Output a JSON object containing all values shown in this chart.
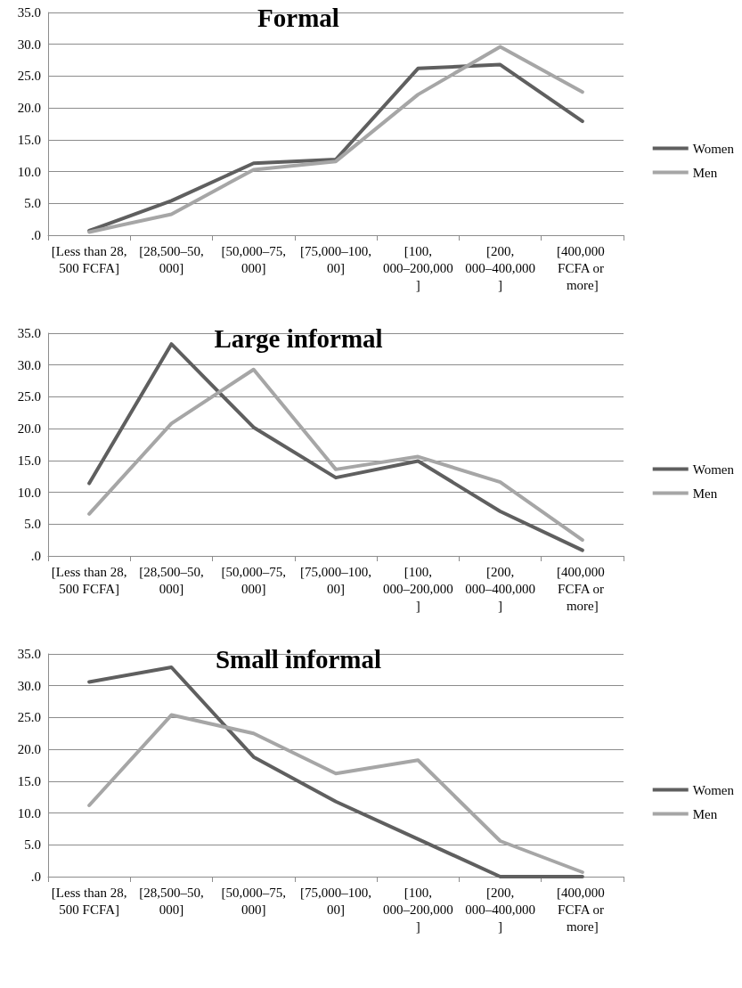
{
  "chart_data": [
    {
      "type": "line",
      "title": "Formal",
      "categories": [
        "[Less than 28,500 FCFA]",
        "[28,500–50,000]",
        "[50,000–75,000]",
        "[75,000–100,00]",
        "[100,000–200,000]",
        "[200,000–400,000]",
        "[400,000 FCFA or more]"
      ],
      "series": [
        {
          "name": "Women",
          "color": "#5f5f5f",
          "values": [
            0.7,
            5.4,
            11.3,
            11.9,
            26.2,
            26.8,
            17.9
          ]
        },
        {
          "name": "Men",
          "color": "#a6a6a6",
          "values": [
            0.5,
            3.3,
            10.3,
            11.6,
            22.1,
            29.6,
            22.5
          ]
        }
      ],
      "ylim": [
        0,
        35
      ],
      "yticks": [
        {
          "value": 0,
          "label": ".0"
        },
        {
          "value": 5,
          "label": "5.0"
        },
        {
          "value": 10,
          "label": "10.0"
        },
        {
          "value": 15,
          "label": "15.0"
        },
        {
          "value": 20,
          "label": "20.0"
        },
        {
          "value": 25,
          "label": "25.0"
        },
        {
          "value": 30,
          "label": "30.0"
        },
        {
          "value": 35,
          "label": "35.0"
        }
      ],
      "grid": "y",
      "legend": "right",
      "marker": "none",
      "line_style": "solid"
    },
    {
      "type": "line",
      "title": "Large informal",
      "categories": [
        "[Less than 28,500 FCFA]",
        "[28,500–50,000]",
        "[50,000–75,000]",
        "[75,000–100,00]",
        "[100,000–200,000]",
        "[200,000–400,000]",
        "[400,000 FCFA or more]"
      ],
      "series": [
        {
          "name": "Women",
          "color": "#5f5f5f",
          "values": [
            11.4,
            33.3,
            20.2,
            12.3,
            14.9,
            7.0,
            0.9
          ]
        },
        {
          "name": "Men",
          "color": "#a6a6a6",
          "values": [
            6.6,
            20.8,
            29.3,
            13.6,
            15.6,
            11.6,
            2.5
          ]
        }
      ],
      "ylim": [
        0,
        35
      ],
      "yticks": [
        {
          "value": 0,
          "label": ".0"
        },
        {
          "value": 5,
          "label": "5.0"
        },
        {
          "value": 10,
          "label": "10.0"
        },
        {
          "value": 15,
          "label": "15.0"
        },
        {
          "value": 20,
          "label": "20.0"
        },
        {
          "value": 25,
          "label": "25.0"
        },
        {
          "value": 30,
          "label": "30.0"
        },
        {
          "value": 35,
          "label": "35.0"
        }
      ],
      "grid": "y",
      "legend": "right",
      "marker": "none",
      "line_style": "solid"
    },
    {
      "type": "line",
      "title": "Small informal",
      "categories": [
        "[Less than 28,500 FCFA]",
        "[28,500–50,000]",
        "[50,000–75,000]",
        "[75,000–100,00]",
        "[100,000–200,000]",
        "[200,000–400,000]",
        "[400,000 FCFA or more]"
      ],
      "series": [
        {
          "name": "Women",
          "color": "#5f5f5f",
          "values": [
            30.6,
            32.9,
            18.8,
            11.8,
            5.9,
            0,
            0
          ]
        },
        {
          "name": "Men",
          "color": "#a6a6a6",
          "values": [
            11.2,
            25.4,
            22.5,
            16.2,
            18.3,
            5.6,
            0.7
          ]
        }
      ],
      "ylim": [
        0,
        35
      ],
      "yticks": [
        {
          "value": 0,
          "label": ".0"
        },
        {
          "value": 5,
          "label": "5.0"
        },
        {
          "value": 10,
          "label": "10.0"
        },
        {
          "value": 15,
          "label": "15.0"
        },
        {
          "value": 20,
          "label": "20.0"
        },
        {
          "value": 25,
          "label": "25.0"
        },
        {
          "value": 30,
          "label": "30.0"
        },
        {
          "value": 35,
          "label": "35.0"
        }
      ],
      "grid": "y",
      "legend": "right",
      "marker": "none",
      "line_style": "solid"
    }
  ]
}
